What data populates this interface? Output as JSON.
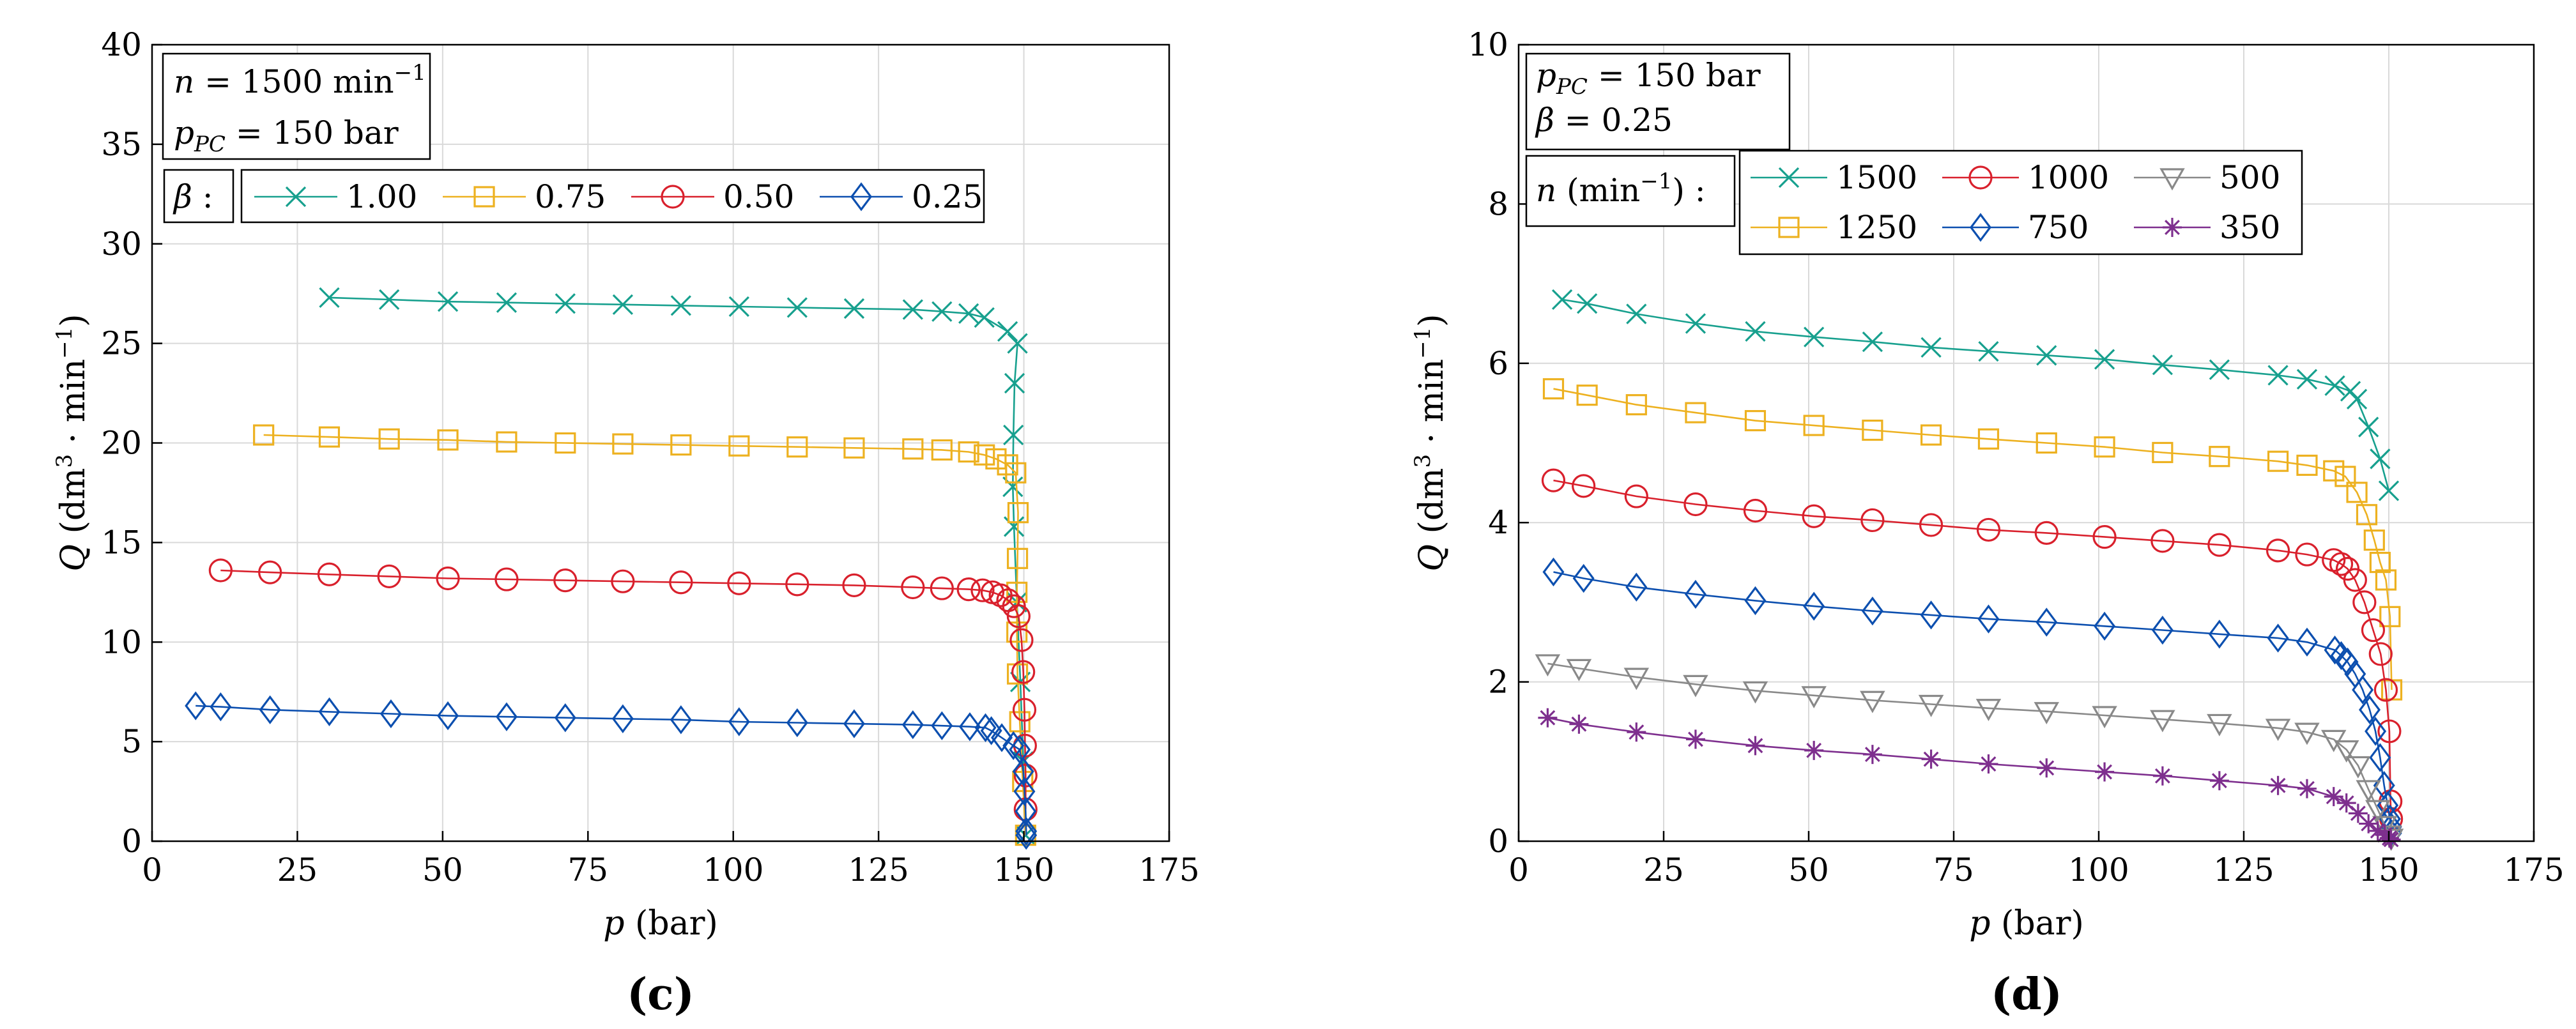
{
  "chart_data": [
    {
      "id": "c",
      "type": "line",
      "panel_label": "(c)",
      "xlabel": "p (bar)",
      "ylabel": "Q (dm3 · min−1)",
      "xlim": [
        0,
        175
      ],
      "ylim": [
        0,
        40
      ],
      "x_ticks": [
        "0",
        "25",
        "50",
        "75",
        "100",
        "125",
        "150",
        "175"
      ],
      "y_ticks": [
        "0",
        "5",
        "10",
        "15",
        "20",
        "25",
        "30",
        "35",
        "40"
      ],
      "grid": true,
      "info_box": [
        {
          "main": "n = 1500 min",
          "sup": "−1"
        },
        {
          "main": "p",
          "sub": "PC",
          "rest": " = 150 bar"
        }
      ],
      "legend_title": "β :",
      "legend_position": "top",
      "series": [
        {
          "name": "1.00",
          "color": "#17A08E",
          "marker": "x",
          "x": [
            30.5,
            40.8,
            50.9,
            61,
            71.1,
            81,
            91,
            101,
            111,
            120.8,
            130.9,
            135.9,
            140.5,
            143.2,
            147.2,
            148.9,
            148.4,
            148.2,
            148.1,
            148.3,
            148.8,
            149.4,
            149.9,
            150.3
          ],
          "y": [
            27.3,
            27.2,
            27.1,
            27.05,
            27.0,
            26.95,
            26.9,
            26.85,
            26.8,
            26.75,
            26.7,
            26.6,
            26.5,
            26.3,
            25.6,
            25.0,
            23.0,
            20.4,
            17.8,
            15.8,
            12.0,
            8.0,
            4.0,
            0.3
          ]
        },
        {
          "name": "0.75",
          "color": "#EDB120",
          "marker": "square",
          "x": [
            19.2,
            30.5,
            40.8,
            50.9,
            61,
            71.1,
            81,
            91,
            101,
            111,
            120.8,
            130.9,
            135.9,
            140.5,
            143.2,
            145.2,
            147.2,
            148.6,
            149,
            148.9,
            148.8,
            148.8,
            148.9,
            149.3,
            149.8,
            150.3
          ],
          "y": [
            20.4,
            20.3,
            20.2,
            20.15,
            20.05,
            20.0,
            19.95,
            19.9,
            19.85,
            19.8,
            19.75,
            19.7,
            19.65,
            19.55,
            19.4,
            19.2,
            18.9,
            18.5,
            16.5,
            14.2,
            12.5,
            10.5,
            8.4,
            6.0,
            3.0,
            0.3
          ]
        },
        {
          "name": "0.50",
          "color": "#D9202C",
          "marker": "circle",
          "x": [
            11.8,
            20.3,
            30.5,
            40.8,
            50.9,
            61,
            71.1,
            81,
            91,
            101,
            111,
            120.8,
            130.9,
            135.9,
            140.5,
            142.9,
            144.6,
            146,
            147.3,
            148.3,
            149.1,
            149.6,
            149.9,
            150.1,
            150.2,
            150.3,
            150.3
          ],
          "y": [
            13.6,
            13.5,
            13.4,
            13.3,
            13.2,
            13.15,
            13.1,
            13.05,
            13.0,
            12.95,
            12.9,
            12.85,
            12.75,
            12.7,
            12.65,
            12.6,
            12.5,
            12.35,
            12.1,
            11.8,
            11.3,
            10.1,
            8.5,
            6.6,
            4.8,
            3.3,
            1.6
          ]
        },
        {
          "name": "0.25",
          "color": "#0C4FAF",
          "marker": "diamond",
          "x": [
            7.5,
            11.8,
            20.3,
            30.5,
            41.1,
            50.9,
            61,
            71.1,
            81,
            91,
            101,
            111,
            120.8,
            130.9,
            135.9,
            140.7,
            143.4,
            144.4,
            146.2,
            148.2,
            149.3,
            149.9,
            150.1,
            150.3,
            150.4,
            150.4
          ],
          "y": [
            6.8,
            6.75,
            6.6,
            6.5,
            6.4,
            6.3,
            6.25,
            6.2,
            6.15,
            6.1,
            6.0,
            5.95,
            5.9,
            5.85,
            5.8,
            5.75,
            5.7,
            5.55,
            5.2,
            4.8,
            4.6,
            3.5,
            2.5,
            1.5,
            0.5,
            0.3
          ]
        }
      ]
    },
    {
      "id": "d",
      "type": "line",
      "panel_label": "(d)",
      "xlabel": "p (bar)",
      "ylabel": "Q (dm3 · min−1)",
      "xlim": [
        0,
        175
      ],
      "ylim": [
        0,
        10
      ],
      "x_ticks": [
        "0",
        "25",
        "50",
        "75",
        "100",
        "125",
        "150",
        "175"
      ],
      "y_ticks": [
        "0",
        "2",
        "4",
        "6",
        "8",
        "10"
      ],
      "grid": true,
      "info_box": [
        {
          "main": "p",
          "sub": "PC",
          "rest": " = 150 bar"
        },
        {
          "main": "β = 0.25"
        }
      ],
      "legend_title": "n (min−1) :",
      "legend_position": "top",
      "series": [
        {
          "name": "1500",
          "color": "#17A08E",
          "marker": "x",
          "x": [
            7.5,
            11.8,
            20.3,
            30.5,
            40.8,
            50.9,
            61,
            71.1,
            81,
            91,
            101,
            111,
            120.8,
            130.9,
            135.9,
            140.7,
            143.4,
            144.5,
            146.5,
            148.5,
            150
          ],
          "y": [
            6.8,
            6.75,
            6.62,
            6.5,
            6.4,
            6.33,
            6.27,
            6.2,
            6.15,
            6.1,
            6.05,
            5.98,
            5.92,
            5.85,
            5.8,
            5.72,
            5.65,
            5.55,
            5.2,
            4.8,
            4.4
          ]
        },
        {
          "name": "1250",
          "color": "#EDB120",
          "marker": "square",
          "x": [
            6,
            11.8,
            20.3,
            30.5,
            40.8,
            50.9,
            61,
            71.1,
            81,
            91,
            101,
            111,
            120.8,
            130.9,
            135.9,
            140.5,
            142.5,
            144.5,
            146.2,
            147.5,
            148.5,
            149.5,
            150.2,
            150.5
          ],
          "y": [
            5.68,
            5.6,
            5.48,
            5.38,
            5.28,
            5.22,
            5.16,
            5.1,
            5.05,
            5.0,
            4.95,
            4.88,
            4.83,
            4.77,
            4.72,
            4.65,
            4.58,
            4.38,
            4.1,
            3.78,
            3.5,
            3.28,
            2.82,
            1.9
          ]
        },
        {
          "name": "1000",
          "color": "#D9202C",
          "marker": "circle",
          "x": [
            6,
            11.2,
            20.3,
            30.5,
            40.8,
            50.9,
            61,
            71.1,
            81,
            91,
            101,
            111,
            120.8,
            130.9,
            135.9,
            140.5,
            141.8,
            142.9,
            144.2,
            145.8,
            147.3,
            148.6,
            149.5,
            150.1,
            150.3,
            150.4
          ],
          "y": [
            4.53,
            4.46,
            4.33,
            4.23,
            4.15,
            4.08,
            4.03,
            3.97,
            3.91,
            3.87,
            3.82,
            3.77,
            3.72,
            3.65,
            3.6,
            3.53,
            3.48,
            3.42,
            3.28,
            3.0,
            2.65,
            2.35,
            1.9,
            1.38,
            0.5,
            0.28
          ]
        },
        {
          "name": "750",
          "color": "#0C4FAF",
          "marker": "diamond",
          "x": [
            6,
            11.2,
            20.3,
            30.5,
            40.8,
            50.9,
            61,
            71.1,
            81,
            91,
            101,
            111,
            120.8,
            130.9,
            135.9,
            140.7,
            141.8,
            142.9,
            144.2,
            145.5,
            146.7,
            147.7,
            148.5,
            149.2,
            149.8,
            150.2,
            150.4,
            150.4
          ],
          "y": [
            3.38,
            3.3,
            3.19,
            3.1,
            3.02,
            2.95,
            2.89,
            2.84,
            2.79,
            2.75,
            2.7,
            2.65,
            2.6,
            2.55,
            2.5,
            2.4,
            2.33,
            2.25,
            2.1,
            1.9,
            1.65,
            1.38,
            1.05,
            0.7,
            0.45,
            0.28,
            0.18,
            0.1
          ]
        },
        {
          "name": "500",
          "color": "#898989",
          "marker": "triangle-down",
          "x": [
            5,
            10.4,
            20.3,
            30.5,
            40.8,
            50.9,
            61,
            71.1,
            81,
            91,
            101,
            111,
            120.8,
            130.9,
            135.9,
            140.5,
            142.7,
            144.7,
            146.5,
            148.1,
            149.3,
            150.1,
            150.4
          ],
          "y": [
            2.23,
            2.17,
            2.06,
            1.97,
            1.89,
            1.83,
            1.77,
            1.72,
            1.67,
            1.63,
            1.58,
            1.53,
            1.48,
            1.42,
            1.37,
            1.28,
            1.15,
            0.95,
            0.65,
            0.4,
            0.2,
            0.08,
            0.04
          ]
        },
        {
          "name": "350",
          "color": "#7E2F8E",
          "marker": "asterisk",
          "x": [
            5,
            10.4,
            20.3,
            30.5,
            40.8,
            50.9,
            61,
            71.1,
            81,
            91,
            101,
            111,
            120.8,
            130.9,
            135.9,
            140.5,
            142.7,
            144.7,
            146.5,
            148.1,
            149.3,
            150.1,
            150.4
          ],
          "y": [
            1.55,
            1.47,
            1.37,
            1.28,
            1.2,
            1.14,
            1.09,
            1.03,
            0.97,
            0.92,
            0.87,
            0.82,
            0.76,
            0.7,
            0.66,
            0.56,
            0.48,
            0.35,
            0.22,
            0.13,
            0.08,
            0.04,
            0.02
          ]
        }
      ]
    }
  ]
}
